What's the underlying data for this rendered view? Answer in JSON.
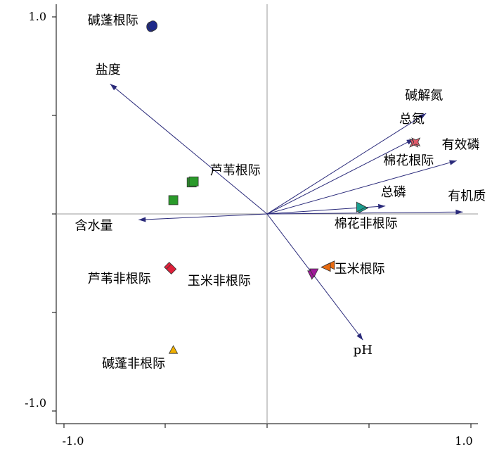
{
  "chart_data": {
    "type": "scatter",
    "subtype": "RDA biplot",
    "title": "",
    "xlabel": "",
    "ylabel": "",
    "xlim": [
      -1.0,
      1.0
    ],
    "ylim": [
      -1.0,
      1.0
    ],
    "grid": false,
    "x_tick_labels": [
      "-1.0",
      "1.0"
    ],
    "y_tick_labels": [
      "1.0",
      "-1.0"
    ],
    "vectors": [
      {
        "name": "盐度",
        "x": -0.77,
        "y": 0.66
      },
      {
        "name": "碱解氮",
        "x": 0.78,
        "y": 0.51
      },
      {
        "name": "总氮",
        "x": 0.72,
        "y": 0.38
      },
      {
        "name": "有效磷",
        "x": 0.93,
        "y": 0.27
      },
      {
        "name": "总磷",
        "x": 0.58,
        "y": 0.04
      },
      {
        "name": "有机质",
        "x": 0.96,
        "y": 0.01
      },
      {
        "name": "含水量",
        "x": -0.63,
        "y": -0.03
      },
      {
        "name": "pH",
        "x": 0.47,
        "y": -0.64
      }
    ],
    "vector_label_offsets": {
      "盐度": [
        -0.01,
        0.05
      ],
      "碱解氮": [
        -0.01,
        0.07
      ],
      "总氮": [
        -0.01,
        0.08
      ],
      "有效磷": [
        0.02,
        0.06
      ],
      "总磷": [
        0.04,
        0.05
      ],
      "有机质": [
        0.02,
        0.06
      ],
      "含水量": [
        -0.22,
        -0.05
      ],
      "pH": [
        0.0,
        -0.07
      ]
    },
    "sample_groups": [
      {
        "name": "碱蓬根际",
        "marker": "circle",
        "color": "#1e2a8a",
        "points": [
          [
            -0.57,
            0.95
          ],
          [
            -0.56,
            0.955
          ]
        ],
        "label_at": [
          -0.88,
          0.96
        ]
      },
      {
        "name": "芦苇根际",
        "marker": "square",
        "color": "#2a9a2a",
        "points": [
          [
            -0.46,
            0.07
          ],
          [
            -0.37,
            0.16
          ],
          [
            -0.36,
            0.165
          ]
        ],
        "label_at": [
          -0.28,
          0.2
        ]
      },
      {
        "name": "棉花根际",
        "marker": "star",
        "color": "#e05a6a",
        "points": [
          [
            0.72,
            0.36
          ],
          [
            0.73,
            0.365
          ]
        ],
        "label_at": [
          0.57,
          0.25
        ]
      },
      {
        "name": "棉花非根际",
        "marker": "triangle-right",
        "color": "#1aa090",
        "points": [
          [
            0.47,
            0.03
          ],
          [
            0.46,
            0.035
          ]
        ],
        "label_at": [
          0.33,
          -0.07
        ]
      },
      {
        "name": "玉米根际",
        "marker": "triangle-left",
        "color": "#e86a10",
        "points": [
          [
            0.31,
            -0.26
          ],
          [
            0.29,
            -0.27
          ]
        ],
        "label_at": [
          0.33,
          -0.3
        ]
      },
      {
        "name": "玉米非根际",
        "marker": "triangle-down",
        "color": "#a01a9a",
        "points": [
          [
            0.22,
            -0.31
          ],
          [
            0.23,
            -0.3
          ]
        ],
        "label_at": [
          -0.39,
          -0.36
        ]
      },
      {
        "name": "芦苇非根际",
        "marker": "diamond",
        "color": "#e0203a",
        "points": [
          [
            -0.48,
            -0.27
          ],
          [
            -0.47,
            -0.28
          ]
        ],
        "label_at": [
          -0.88,
          -0.35
        ]
      },
      {
        "name": "碱蓬非根际",
        "marker": "triangle-up",
        "color": "#f0b000",
        "points": [
          [
            -0.46,
            -0.69
          ]
        ],
        "label_at": [
          -0.81,
          -0.78
        ]
      }
    ],
    "colors": {
      "vector": "#2a2a7a",
      "axis_line": "#999999",
      "frame": "#000000"
    }
  }
}
